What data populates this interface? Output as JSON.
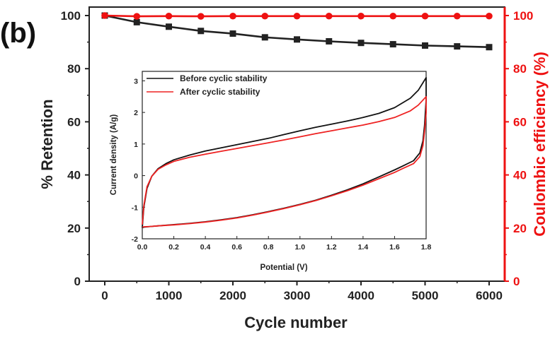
{
  "panel_label": "(b)",
  "colors": {
    "retention": "#222222",
    "coulombic": "#ee1111",
    "before_cv": "#111111",
    "after_cv": "#ee2222"
  },
  "chart_data": [
    {
      "type": "line",
      "xlabel": "Cycle number",
      "ylabel": "% Retention",
      "y2label": "Coulombic efficiency (%)",
      "xlim": [
        0,
        6000
      ],
      "ylim": [
        0,
        100
      ],
      "y2lim": [
        0,
        100
      ],
      "x_ticks": [
        "0",
        "1000",
        "2000",
        "3000",
        "4000",
        "5000",
        "6000"
      ],
      "y_ticks": [
        "0",
        "20",
        "40",
        "60",
        "80",
        "100"
      ],
      "y2_ticks": [
        "0",
        "20",
        "40",
        "60",
        "80",
        "100"
      ],
      "grid": false,
      "series": [
        {
          "axis": "left",
          "marker": "square",
          "x": [
            0,
            500,
            1000,
            1500,
            2000,
            2500,
            3000,
            3500,
            4000,
            4500,
            5000,
            5500,
            6000
          ],
          "y": [
            100,
            97.5,
            95.8,
            94.2,
            93.2,
            91.8,
            91.0,
            90.3,
            89.7,
            89.2,
            88.7,
            88.4,
            88.1
          ]
        },
        {
          "axis": "right",
          "marker": "circle",
          "x": [
            0,
            500,
            1000,
            1500,
            2000,
            2500,
            3000,
            3500,
            4000,
            4500,
            5000,
            5500,
            6000
          ],
          "y": [
            100,
            99.7,
            99.8,
            99.7,
            99.8,
            99.8,
            99.8,
            99.8,
            99.8,
            99.8,
            99.8,
            99.8,
            99.8
          ]
        }
      ]
    },
    {
      "type": "line",
      "inset": true,
      "xlabel": "Potential (V)",
      "ylabel": "Current density (A/g)",
      "xlim": [
        0,
        1.8
      ],
      "ylim": [
        -2,
        3.3
      ],
      "x_ticks": [
        "0.0",
        "0.2",
        "0.4",
        "0.6",
        "0.8",
        "1.0",
        "1.2",
        "1.4",
        "1.6",
        "1.8"
      ],
      "y_ticks": [
        "-2",
        "-1",
        "0",
        "1",
        "2",
        "3"
      ],
      "legend_position": "top-left",
      "series": [
        {
          "name": "Before cyclic stability",
          "x": [
            0,
            0.01,
            0.03,
            0.06,
            0.1,
            0.15,
            0.2,
            0.3,
            0.4,
            0.5,
            0.6,
            0.7,
            0.8,
            0.9,
            1.0,
            1.1,
            1.2,
            1.3,
            1.4,
            1.5,
            1.6,
            1.7,
            1.75,
            1.8,
            1.8,
            1.79,
            1.78,
            1.76,
            1.72,
            1.65,
            1.6,
            1.5,
            1.4,
            1.3,
            1.2,
            1.1,
            1.0,
            0.9,
            0.8,
            0.7,
            0.6,
            0.5,
            0.4,
            0.3,
            0.2,
            0.1,
            0.05,
            0.01,
            0
          ],
          "y": [
            -1.65,
            -1.0,
            -0.4,
            -0.02,
            0.22,
            0.38,
            0.5,
            0.65,
            0.78,
            0.88,
            0.98,
            1.08,
            1.18,
            1.3,
            1.42,
            1.53,
            1.63,
            1.73,
            1.84,
            1.97,
            2.15,
            2.45,
            2.7,
            3.1,
            2.4,
            1.6,
            1.1,
            0.72,
            0.47,
            0.3,
            0.18,
            -0.04,
            -0.26,
            -0.45,
            -0.62,
            -0.78,
            -0.91,
            -1.03,
            -1.14,
            -1.24,
            -1.33,
            -1.4,
            -1.46,
            -1.51,
            -1.55,
            -1.59,
            -1.61,
            -1.63,
            -1.65
          ]
        },
        {
          "name": "After cyclic stability",
          "x": [
            0,
            0.01,
            0.03,
            0.06,
            0.1,
            0.15,
            0.2,
            0.3,
            0.4,
            0.5,
            0.6,
            0.7,
            0.8,
            0.9,
            1.0,
            1.1,
            1.2,
            1.3,
            1.4,
            1.5,
            1.6,
            1.7,
            1.75,
            1.8,
            1.8,
            1.79,
            1.78,
            1.76,
            1.72,
            1.65,
            1.6,
            1.5,
            1.4,
            1.3,
            1.2,
            1.1,
            1.0,
            0.9,
            0.8,
            0.7,
            0.6,
            0.5,
            0.4,
            0.3,
            0.2,
            0.1,
            0.05,
            0.01,
            0
          ],
          "y": [
            -1.55,
            -0.95,
            -0.35,
            -0.02,
            0.2,
            0.34,
            0.45,
            0.58,
            0.68,
            0.77,
            0.86,
            0.95,
            1.04,
            1.13,
            1.23,
            1.33,
            1.42,
            1.51,
            1.6,
            1.71,
            1.84,
            2.05,
            2.23,
            2.5,
            2.0,
            1.4,
            0.95,
            0.6,
            0.38,
            0.22,
            0.1,
            -0.1,
            -0.3,
            -0.48,
            -0.64,
            -0.79,
            -0.92,
            -1.04,
            -1.15,
            -1.25,
            -1.34,
            -1.41,
            -1.47,
            -1.52,
            -1.56,
            -1.59,
            -1.61,
            -1.62,
            -1.63
          ]
        }
      ]
    }
  ]
}
